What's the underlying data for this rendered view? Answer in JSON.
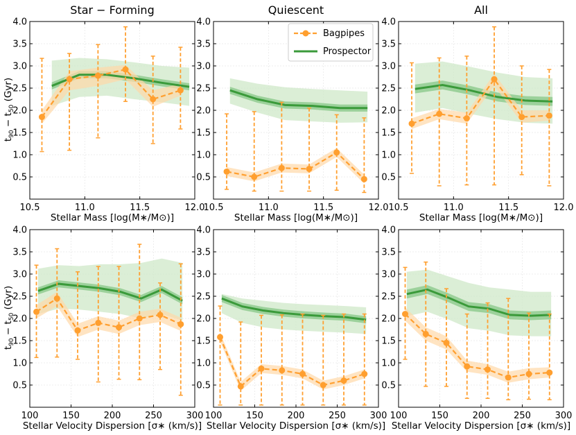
{
  "figure": {
    "col_titles": [
      "Star − Forming",
      "Quiescent",
      "All"
    ],
    "ylabel_main": "t",
    "ylabel_sub1": "90",
    "ylabel_mid": " − t",
    "ylabel_sub2": "50",
    "ylabel_unit": " (Gyr)",
    "xlabel_mass": "Stellar Mass [log(M∗/M⊙)]",
    "xlabel_sigma": "Stellar Velocity Dispersion [σ∗ (km/s)]",
    "legend": {
      "bagpipes": "Bagpipes",
      "prospector": "Prospector"
    },
    "colors": {
      "bagpipes": "#ff9f2f",
      "bagpipes_band": "#ffd8a8",
      "prospector": "#3a9a3a",
      "prospector_band": "#cfe8c8",
      "prospector_inner": "#8cc98c"
    }
  },
  "chart_data": [
    {
      "type": "line",
      "panel": "mass-star-forming",
      "title": "Star − Forming",
      "xlabel": "Stellar Mass [log(M∗/M⊙)]",
      "ylabel": "t90 − t50 (Gyr)",
      "xlim": [
        10.5,
        12.0
      ],
      "ylim": [
        0.0,
        4.0
      ],
      "xticks": [
        10.5,
        11.0,
        11.5,
        12.0
      ],
      "xtick_labels": [
        "10.5",
        "11.0",
        "11.5",
        "12.0"
      ],
      "yticks": [
        0.5,
        1.0,
        1.5,
        2.0,
        2.5,
        3.0,
        3.5,
        4.0
      ],
      "ytick_labels": [
        "0.5",
        "1.0",
        "1.5",
        "2.0",
        "2.5",
        "3.0",
        "3.5",
        "4.0"
      ],
      "series": [
        {
          "name": "Bagpipes",
          "x": [
            10.61,
            10.86,
            11.12,
            11.37,
            11.62,
            11.87
          ],
          "values": [
            1.85,
            2.7,
            2.78,
            2.92,
            2.25,
            2.45
          ],
          "err_low": [
            1.07,
            1.1,
            1.38,
            2.2,
            1.25,
            1.58
          ],
          "err_high": [
            3.17,
            3.28,
            3.48,
            3.88,
            3.22,
            3.42
          ],
          "band_low": [
            1.7,
            2.45,
            2.55,
            2.7,
            2.08,
            2.33
          ],
          "band_high": [
            2.0,
            2.88,
            2.96,
            3.02,
            2.45,
            2.6
          ]
        },
        {
          "name": "Prospector",
          "x": [
            10.7,
            10.95,
            11.2,
            11.45,
            11.7,
            11.95
          ],
          "values": [
            2.55,
            2.8,
            2.8,
            2.72,
            2.62,
            2.53
          ],
          "band_low": [
            2.1,
            2.3,
            2.33,
            2.25,
            2.18,
            2.1
          ],
          "band_high": [
            3.12,
            3.18,
            3.15,
            3.08,
            3.0,
            2.96
          ],
          "inner_low": [
            2.47,
            2.72,
            2.72,
            2.64,
            2.54,
            2.45
          ],
          "inner_high": [
            2.63,
            2.88,
            2.88,
            2.8,
            2.7,
            2.61
          ]
        }
      ]
    },
    {
      "type": "line",
      "panel": "mass-quiescent",
      "title": "Quiescent",
      "xlabel": "Stellar Mass [log(M∗/M⊙)]",
      "ylabel": "",
      "xlim": [
        10.5,
        12.0
      ],
      "ylim": [
        0.0,
        4.0
      ],
      "xticks": [
        10.5,
        11.0,
        11.5,
        12.0
      ],
      "xtick_labels": [
        "10.5",
        "11.0",
        "11.5",
        "12.0"
      ],
      "yticks": [
        0.5,
        1.0,
        1.5,
        2.0,
        2.5,
        3.0,
        3.5,
        4.0
      ],
      "ytick_labels": [
        "0.5",
        "1.0",
        "1.5",
        "2.0",
        "2.5",
        "3.0",
        "3.5",
        "4.0"
      ],
      "series": [
        {
          "name": "Bagpipes",
          "x": [
            10.62,
            10.87,
            11.12,
            11.37,
            11.62,
            11.87
          ],
          "values": [
            0.62,
            0.5,
            0.7,
            0.68,
            1.05,
            0.45
          ],
          "err_low": [
            0.22,
            0.18,
            0.18,
            0.18,
            0.2,
            0.15
          ],
          "err_high": [
            1.92,
            1.97,
            2.18,
            2.05,
            1.9,
            1.83
          ],
          "band_low": [
            0.52,
            0.4,
            0.6,
            0.58,
            0.95,
            0.35
          ],
          "band_high": [
            0.72,
            0.6,
            0.8,
            0.78,
            1.15,
            0.55
          ]
        },
        {
          "name": "Prospector",
          "x": [
            10.65,
            10.9,
            11.15,
            11.4,
            11.65,
            11.9
          ],
          "values": [
            2.45,
            2.25,
            2.12,
            2.1,
            2.05,
            2.05
          ],
          "band_low": [
            2.15,
            1.95,
            1.78,
            1.75,
            1.72,
            1.73
          ],
          "band_high": [
            2.72,
            2.6,
            2.52,
            2.48,
            2.45,
            2.42
          ],
          "inner_low": [
            2.37,
            2.17,
            2.04,
            2.02,
            1.97,
            1.97
          ],
          "inner_high": [
            2.53,
            2.33,
            2.2,
            2.18,
            2.13,
            2.13
          ]
        }
      ]
    },
    {
      "type": "line",
      "panel": "mass-all",
      "title": "All",
      "xlabel": "Stellar Mass [log(M∗/M⊙)]",
      "ylabel": "",
      "xlim": [
        10.5,
        12.0
      ],
      "ylim": [
        0.0,
        4.0
      ],
      "xticks": [
        10.5,
        11.0,
        11.5,
        12.0
      ],
      "xtick_labels": [
        "10.5",
        "11.0",
        "11.5",
        "12.0"
      ],
      "yticks": [
        0.5,
        1.0,
        1.5,
        2.0,
        2.5,
        3.0,
        3.5,
        4.0
      ],
      "ytick_labels": [
        "0.5",
        "1.0",
        "1.5",
        "2.0",
        "2.5",
        "3.0",
        "3.5",
        "4.0"
      ],
      "series": [
        {
          "name": "Bagpipes",
          "x": [
            10.62,
            10.87,
            11.12,
            11.37,
            11.62,
            11.87
          ],
          "values": [
            1.7,
            1.92,
            1.82,
            2.7,
            1.85,
            1.88
          ],
          "err_low": [
            0.58,
            0.3,
            0.32,
            0.32,
            0.55,
            0.3
          ],
          "err_high": [
            3.07,
            3.18,
            3.22,
            3.88,
            3.0,
            2.92
          ],
          "band_low": [
            1.58,
            1.8,
            1.7,
            2.55,
            1.72,
            1.77
          ],
          "band_high": [
            1.82,
            2.03,
            1.95,
            2.82,
            2.0,
            2.0
          ]
        },
        {
          "name": "Prospector",
          "x": [
            10.65,
            10.9,
            11.15,
            11.4,
            11.65,
            11.9
          ],
          "values": [
            2.48,
            2.57,
            2.45,
            2.3,
            2.22,
            2.2
          ],
          "band_low": [
            1.95,
            2.05,
            1.92,
            1.8,
            1.72,
            1.7
          ],
          "band_high": [
            3.05,
            3.1,
            2.98,
            2.85,
            2.75,
            2.72
          ],
          "inner_low": [
            2.38,
            2.47,
            2.35,
            2.2,
            2.12,
            2.1
          ],
          "inner_high": [
            2.58,
            2.67,
            2.55,
            2.4,
            2.32,
            2.3
          ]
        }
      ]
    },
    {
      "type": "line",
      "panel": "sigma-star-forming",
      "title": "",
      "xlabel": "Stellar Velocity Dispersion [σ∗ (km/s)]",
      "ylabel": "t90 − t50 (Gyr)",
      "xlim": [
        100,
        300
      ],
      "ylim": [
        0.0,
        4.0
      ],
      "xticks": [
        100,
        150,
        200,
        250,
        300
      ],
      "xtick_labels": [
        "100",
        "150",
        "200",
        "250",
        "300"
      ],
      "yticks": [
        0.5,
        1.0,
        1.5,
        2.0,
        2.5,
        3.0,
        3.5,
        4.0
      ],
      "ytick_labels": [
        "0.5",
        "1.0",
        "1.5",
        "2.0",
        "2.5",
        "3.0",
        "3.5",
        "4.0"
      ],
      "series": [
        {
          "name": "Bagpipes",
          "x": [
            108,
            133,
            158,
            183,
            208,
            233,
            258,
            283
          ],
          "values": [
            2.15,
            2.45,
            1.73,
            1.9,
            1.8,
            2.0,
            2.08,
            1.87
          ],
          "err_low": [
            1.12,
            1.13,
            1.08,
            0.57,
            0.63,
            0.62,
            0.85,
            0.27
          ],
          "err_high": [
            3.2,
            3.57,
            3.05,
            3.17,
            3.17,
            3.67,
            2.8,
            3.23
          ],
          "band_low": [
            2.0,
            2.28,
            1.58,
            1.75,
            1.65,
            1.85,
            1.92,
            1.72
          ],
          "band_high": [
            2.3,
            2.6,
            1.88,
            2.05,
            1.95,
            2.15,
            2.22,
            2.02
          ]
        },
        {
          "name": "Prospector",
          "x": [
            110,
            135,
            160,
            185,
            210,
            235,
            260,
            285
          ],
          "values": [
            2.62,
            2.78,
            2.73,
            2.68,
            2.6,
            2.45,
            2.65,
            2.4
          ],
          "band_low": [
            2.1,
            2.22,
            2.2,
            2.15,
            2.1,
            2.0,
            2.1,
            1.95
          ],
          "band_high": [
            3.12,
            3.2,
            3.18,
            3.22,
            3.22,
            3.25,
            3.35,
            3.25
          ],
          "inner_low": [
            2.54,
            2.7,
            2.65,
            2.6,
            2.52,
            2.37,
            2.57,
            2.32
          ],
          "inner_high": [
            2.7,
            2.86,
            2.81,
            2.76,
            2.68,
            2.53,
            2.73,
            2.48
          ]
        }
      ]
    },
    {
      "type": "line",
      "panel": "sigma-quiescent",
      "title": "",
      "xlabel": "Stellar Velocity Dispersion [σ∗ (km/s)]",
      "ylabel": "",
      "xlim": [
        100,
        300
      ],
      "ylim": [
        0.0,
        4.0
      ],
      "xticks": [
        100,
        150,
        200,
        250,
        300
      ],
      "xtick_labels": [
        "100",
        "150",
        "200",
        "250",
        "300"
      ],
      "yticks": [
        0.5,
        1.0,
        1.5,
        2.0,
        2.5,
        3.0,
        3.5,
        4.0
      ],
      "ytick_labels": [
        "0.5",
        "1.0",
        "1.5",
        "2.0",
        "2.5",
        "3.0",
        "3.5",
        "4.0"
      ],
      "series": [
        {
          "name": "Bagpipes",
          "x": [
            108,
            133,
            158,
            183,
            208,
            233,
            258,
            283
          ],
          "values": [
            1.58,
            0.47,
            0.87,
            0.83,
            0.75,
            0.5,
            0.6,
            0.75
          ],
          "err_low": [
            0.05,
            0.05,
            0.05,
            0.05,
            0.05,
            0.05,
            0.05,
            0.05
          ],
          "err_high": [
            2.28,
            1.92,
            2.07,
            2.08,
            2.1,
            2.07,
            2.1,
            2.1
          ],
          "band_low": [
            1.48,
            0.37,
            0.77,
            0.73,
            0.65,
            0.4,
            0.5,
            0.65
          ],
          "band_high": [
            1.68,
            0.57,
            0.97,
            0.93,
            0.85,
            0.6,
            0.7,
            0.85
          ]
        },
        {
          "name": "Prospector",
          "x": [
            110,
            135,
            160,
            185,
            210,
            235,
            260,
            285
          ],
          "values": [
            2.45,
            2.27,
            2.18,
            2.12,
            2.08,
            2.05,
            2.03,
            1.97
          ],
          "band_low": [
            2.12,
            1.9,
            1.8,
            1.75,
            1.72,
            1.7,
            1.68,
            1.65
          ],
          "band_high": [
            2.55,
            2.45,
            2.4,
            2.35,
            2.32,
            2.3,
            2.28,
            2.25
          ],
          "inner_low": [
            2.37,
            2.19,
            2.1,
            2.04,
            2.0,
            1.97,
            1.95,
            1.89
          ],
          "inner_high": [
            2.53,
            2.35,
            2.26,
            2.2,
            2.16,
            2.13,
            2.11,
            2.05
          ]
        }
      ]
    },
    {
      "type": "line",
      "panel": "sigma-all",
      "title": "",
      "xlabel": "Stellar Velocity Dispersion [σ∗ (km/s)]",
      "ylabel": "",
      "xlim": [
        100,
        300
      ],
      "ylim": [
        0.0,
        4.0
      ],
      "xticks": [
        100,
        150,
        200,
        250,
        300
      ],
      "xtick_labels": [
        "100",
        "150",
        "200",
        "250",
        "300"
      ],
      "yticks": [
        0.5,
        1.0,
        1.5,
        2.0,
        2.5,
        3.0,
        3.5,
        4.0
      ],
      "ytick_labels": [
        "0.5",
        "1.0",
        "1.5",
        "2.0",
        "2.5",
        "3.0",
        "3.5",
        "4.0"
      ],
      "series": [
        {
          "name": "Bagpipes",
          "x": [
            108,
            133,
            158,
            183,
            208,
            233,
            258,
            283
          ],
          "values": [
            2.1,
            1.65,
            1.45,
            0.92,
            0.85,
            0.67,
            0.75,
            0.78
          ],
          "err_low": [
            1.08,
            0.47,
            0.47,
            0.2,
            0.2,
            0.17,
            0.18,
            0.17
          ],
          "err_high": [
            3.15,
            3.27,
            2.67,
            2.1,
            2.35,
            2.45,
            2.12,
            2.1
          ],
          "band_low": [
            1.95,
            1.5,
            1.3,
            0.8,
            0.73,
            0.55,
            0.63,
            0.67
          ],
          "band_high": [
            2.25,
            1.8,
            1.6,
            1.05,
            0.97,
            0.8,
            0.88,
            0.9
          ]
        },
        {
          "name": "Prospector",
          "x": [
            110,
            135,
            160,
            185,
            210,
            235,
            260,
            285
          ],
          "values": [
            2.55,
            2.65,
            2.47,
            2.27,
            2.22,
            2.08,
            2.06,
            2.08
          ],
          "band_low": [
            2.05,
            2.15,
            1.98,
            1.78,
            1.72,
            1.62,
            1.6,
            1.6
          ],
          "band_high": [
            3.05,
            3.1,
            2.95,
            2.8,
            2.7,
            2.65,
            2.6,
            2.6
          ],
          "inner_low": [
            2.45,
            2.55,
            2.37,
            2.17,
            2.12,
            1.98,
            1.96,
            1.98
          ],
          "inner_high": [
            2.65,
            2.75,
            2.57,
            2.37,
            2.32,
            2.18,
            2.16,
            2.18
          ]
        }
      ]
    }
  ]
}
